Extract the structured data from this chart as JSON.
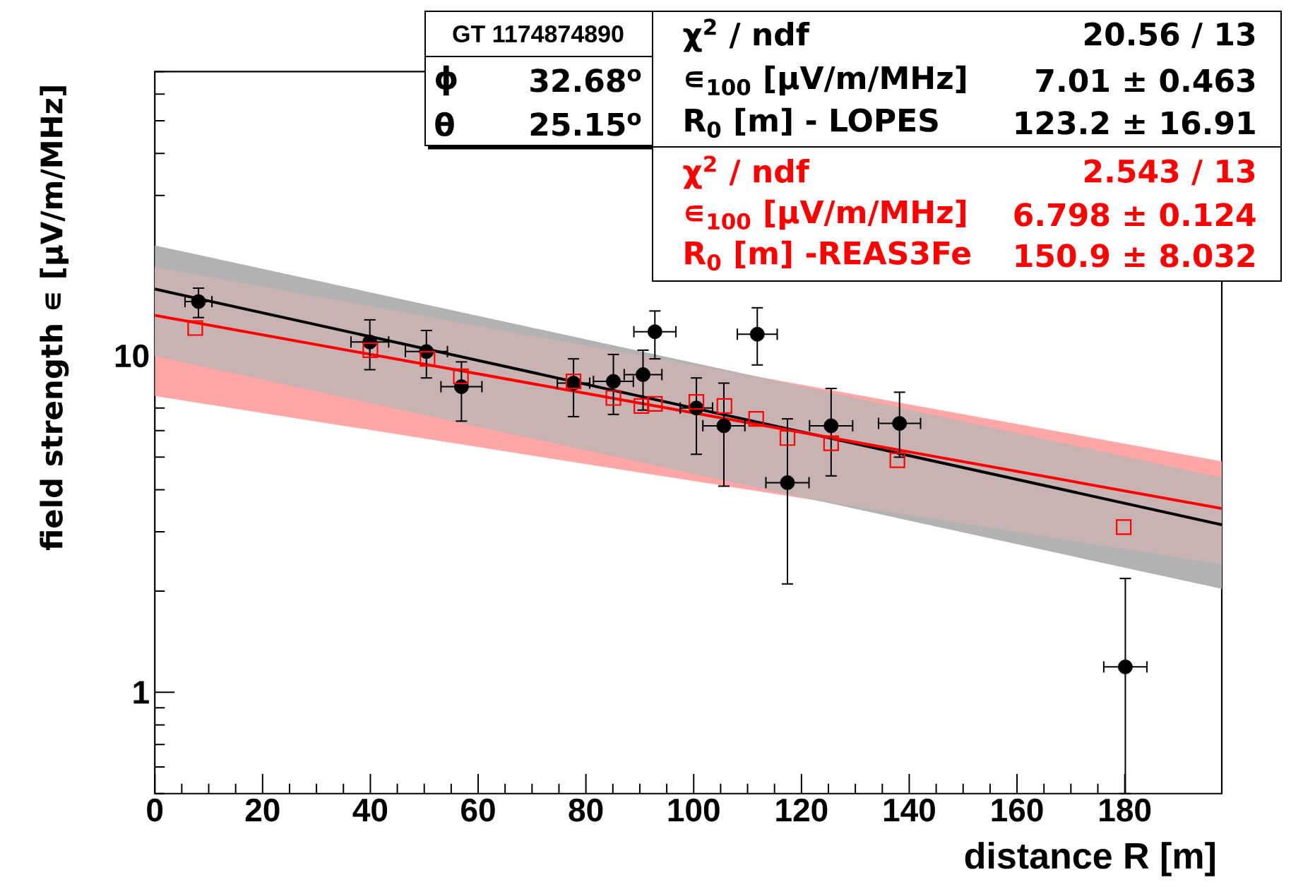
{
  "chart_data": {
    "type": "scatter",
    "xlabel": "distance R [m]",
    "ylabel": "field strength ∊ [μV/m/MHz]",
    "xlim": [
      0,
      198
    ],
    "xticks": [
      0,
      20,
      40,
      60,
      80,
      100,
      120,
      140,
      160,
      180
    ],
    "ylim": [
      0.5,
      70
    ],
    "yticks": [
      1,
      10
    ],
    "log": "y",
    "series": [
      {
        "type": "line",
        "color": "#000000",
        "x": [
          0,
          198
        ],
        "values": [
          15.8,
          3.15
        ],
        "lower": [
          10.0,
          2.03
        ],
        "upper": [
          21.3,
          4.34
        ]
      },
      {
        "type": "line",
        "color": "#ff0000",
        "x": [
          0,
          198
        ],
        "values": [
          13.2,
          3.52
        ],
        "lower": [
          7.6,
          2.4
        ],
        "upper": [
          18.4,
          4.86
        ]
      },
      {
        "color": "#000000",
        "marker": "circle",
        "x": [
          8.1,
          39.9,
          50.4,
          56.9,
          77.7,
          85.1,
          90.6,
          92.8,
          100.5,
          105.6,
          111.8,
          117.4,
          125.5,
          138.2,
          180.1
        ],
        "values": [
          14.5,
          11.0,
          10.3,
          8.1,
          8.3,
          8.4,
          8.8,
          11.8,
          7.0,
          6.2,
          11.6,
          4.2,
          6.2,
          6.3,
          1.19
        ],
        "errors": [
          [
            13.0,
            15.9
          ],
          [
            9.1,
            12.8
          ],
          [
            8.6,
            11.9
          ],
          [
            6.4,
            9.6
          ],
          [
            6.6,
            9.8
          ],
          [
            6.7,
            10.1
          ],
          [
            6.9,
            10.4
          ],
          [
            9.8,
            13.6
          ],
          [
            5.1,
            8.6
          ],
          [
            4.1,
            8.3
          ],
          [
            9.4,
            13.9
          ],
          [
            2.1,
            6.5
          ],
          [
            4.4,
            8.0
          ],
          [
            5.0,
            7.8
          ],
          [
            0.5,
            2.18
          ]
        ],
        "xerrors": [
          2.5,
          3.5,
          3.9,
          3.8,
          3,
          3.7,
          3.5,
          3.9,
          3,
          3.9,
          3.7,
          4,
          4,
          3.9,
          4
        ]
      },
      {
        "color": "#ff0000",
        "marker": "square",
        "x": [
          7.5,
          40.0,
          50.6,
          56.8,
          77.7,
          85.1,
          90.3,
          92.8,
          100.5,
          105.7,
          111.6,
          117.4,
          125.5,
          137.8,
          179.8
        ],
        "values": [
          12.1,
          10.4,
          9.8,
          8.7,
          8.4,
          7.5,
          7.1,
          7.2,
          7.3,
          7.1,
          6.5,
          5.7,
          5.5,
          4.9,
          3.1
        ]
      }
    ],
    "annotations": [
      "GT 1174874890",
      "ϕ",
      "32.68$^{o}$",
      "θ",
      "25.15$^{o}$",
      "χ$^{2}$ / ndf",
      "20.56 / 13",
      "∊$_{100}$ [μV/m/MHz]",
      "7.01 ± 0.463",
      "R$_{0}$ [m] - LOPES",
      "123.2 ± 16.91",
      "χ$^{2}$ / ndf",
      "2.543 / 13",
      "∊$_{100}$ [μV/m/MHz]",
      "6.798 ± 0.124",
      "R$_{0}$ [m] -REAS3Fe",
      "150.9 ± 8.032"
    ]
  }
}
